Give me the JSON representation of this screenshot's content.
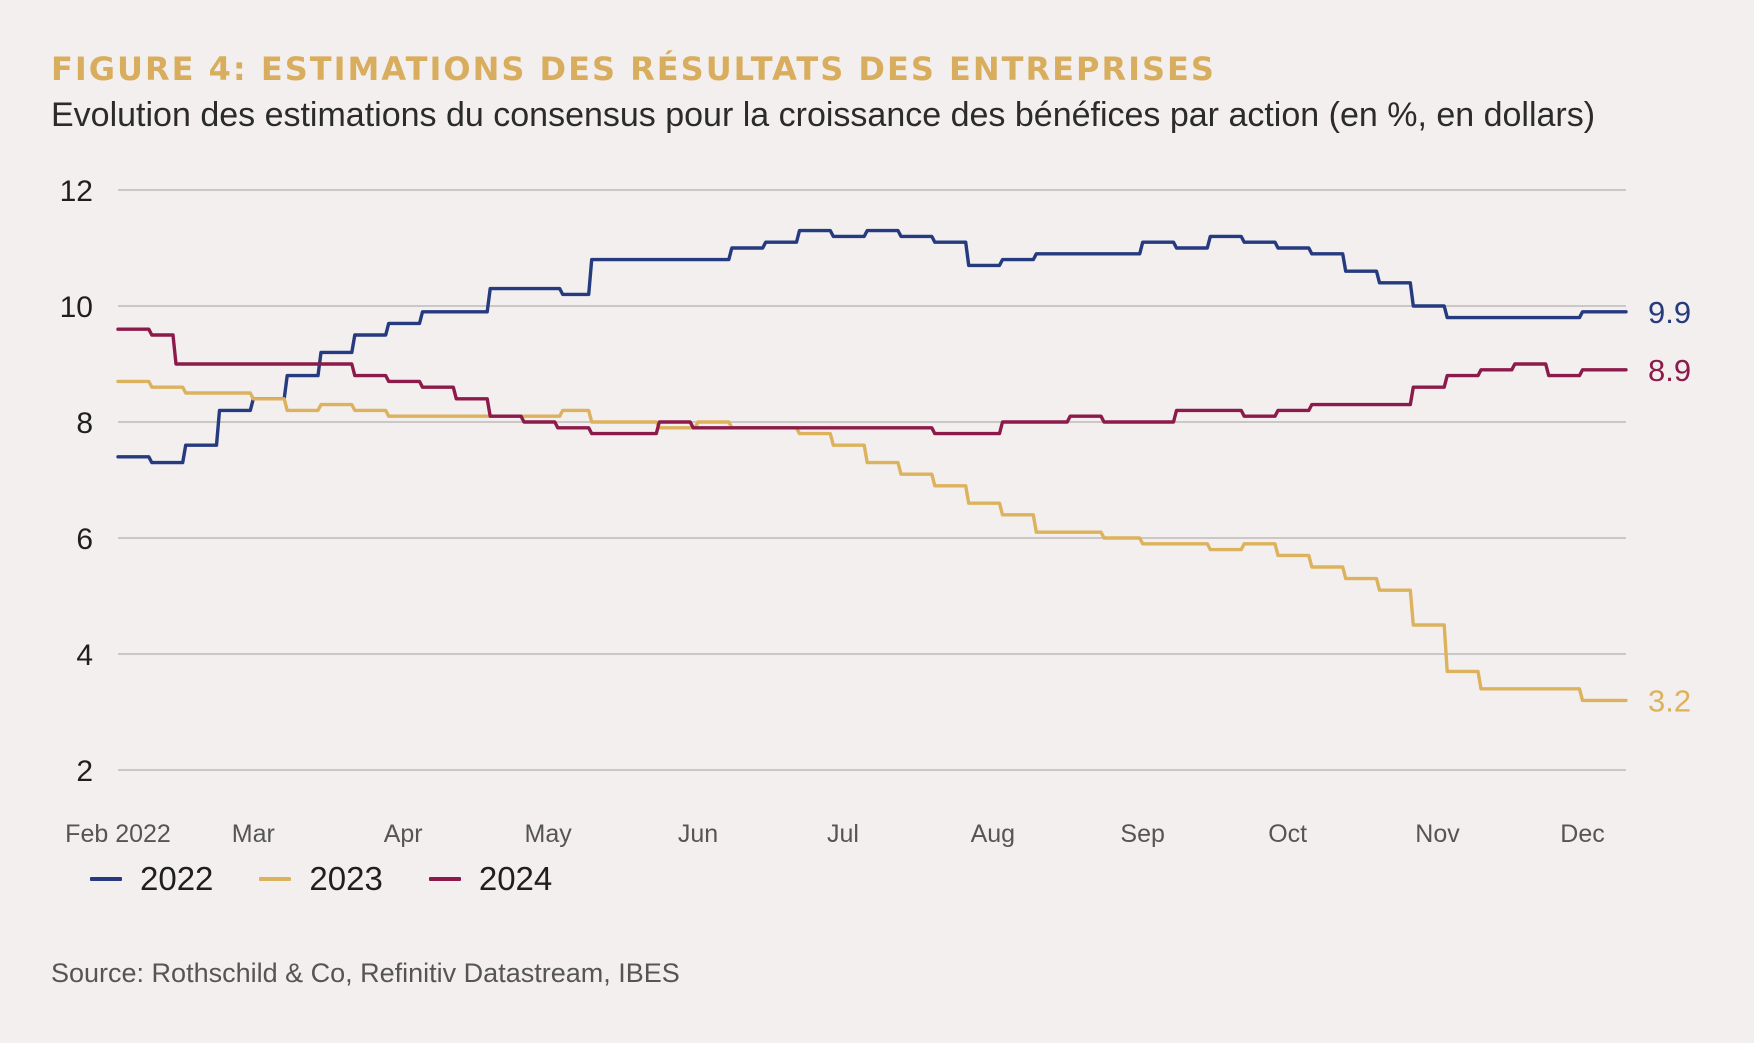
{
  "header": {
    "title": "FIGURE 4: ESTIMATIONS DES RÉSULTATS DES ENTREPRISES",
    "subtitle": "Evolution des estimations du consensus pour la croissance des bénéfices par action (en %, en dollars)"
  },
  "footer": {
    "source": "Source: Rothschild & Co, Refinitiv Datastream, IBES"
  },
  "chart_data": {
    "type": "line",
    "title": "FIGURE 4: ESTIMATIONS DES RÉSULTATS DES ENTREPRISES",
    "subtitle": "Evolution des estimations du consensus pour la croissance des bénéfices par action (en %, en dollars)",
    "xlabel": "",
    "ylabel": "",
    "ylim": [
      2,
      12
    ],
    "yticks": [
      2,
      4,
      6,
      8,
      10,
      12
    ],
    "xlim": [
      "2022-02-01",
      "2022-12-10"
    ],
    "x_ticks": [
      {
        "date": "2022-02-01",
        "label": "Feb 2022"
      },
      {
        "date": "2022-03-01",
        "label": "Mar"
      },
      {
        "date": "2022-04-01",
        "label": "Apr"
      },
      {
        "date": "2022-05-01",
        "label": "May"
      },
      {
        "date": "2022-06-01",
        "label": "Jun"
      },
      {
        "date": "2022-07-01",
        "label": "Jul"
      },
      {
        "date": "2022-08-01",
        "label": "Aug"
      },
      {
        "date": "2022-09-01",
        "label": "Sep"
      },
      {
        "date": "2022-10-01",
        "label": "Oct"
      },
      {
        "date": "2022-11-01",
        "label": "Nov"
      },
      {
        "date": "2022-12-01",
        "label": "Dec"
      }
    ],
    "grid": true,
    "legend_position": "bottom-left",
    "series": [
      {
        "name": "2022",
        "color": "#253a7f",
        "end_label": "9.9",
        "points": [
          [
            "2022-02-01",
            7.4
          ],
          [
            "2022-02-08",
            7.3
          ],
          [
            "2022-02-15",
            7.6
          ],
          [
            "2022-02-22",
            8.2
          ],
          [
            "2022-03-01",
            8.4
          ],
          [
            "2022-03-08",
            8.8
          ],
          [
            "2022-03-15",
            9.2
          ],
          [
            "2022-03-22",
            9.5
          ],
          [
            "2022-03-29",
            9.7
          ],
          [
            "2022-04-05",
            9.9
          ],
          [
            "2022-04-19",
            10.3
          ],
          [
            "2022-05-04",
            10.2
          ],
          [
            "2022-05-10",
            10.8
          ],
          [
            "2022-06-08",
            11.0
          ],
          [
            "2022-06-15",
            11.1
          ],
          [
            "2022-06-22",
            11.3
          ],
          [
            "2022-06-29",
            11.2
          ],
          [
            "2022-07-06",
            11.3
          ],
          [
            "2022-07-13",
            11.2
          ],
          [
            "2022-07-20",
            11.1
          ],
          [
            "2022-07-27",
            10.7
          ],
          [
            "2022-08-03",
            10.8
          ],
          [
            "2022-08-10",
            10.9
          ],
          [
            "2022-09-01",
            11.1
          ],
          [
            "2022-09-08",
            11.0
          ],
          [
            "2022-09-15",
            11.2
          ],
          [
            "2022-09-22",
            11.1
          ],
          [
            "2022-09-29",
            11.0
          ],
          [
            "2022-10-06",
            10.9
          ],
          [
            "2022-10-13",
            10.6
          ],
          [
            "2022-10-20",
            10.4
          ],
          [
            "2022-10-27",
            10.0
          ],
          [
            "2022-11-03",
            9.8
          ],
          [
            "2022-12-01",
            9.9
          ],
          [
            "2022-12-10",
            9.9
          ]
        ]
      },
      {
        "name": "2023",
        "color": "#ddb25d",
        "end_label": "3.2",
        "points": [
          [
            "2022-02-01",
            8.7
          ],
          [
            "2022-02-08",
            8.6
          ],
          [
            "2022-02-15",
            8.5
          ],
          [
            "2022-03-01",
            8.4
          ],
          [
            "2022-03-08",
            8.2
          ],
          [
            "2022-03-15",
            8.3
          ],
          [
            "2022-03-22",
            8.2
          ],
          [
            "2022-03-29",
            8.1
          ],
          [
            "2022-05-04",
            8.2
          ],
          [
            "2022-05-10",
            8.0
          ],
          [
            "2022-05-24",
            7.9
          ],
          [
            "2022-06-01",
            8.0
          ],
          [
            "2022-06-08",
            7.9
          ],
          [
            "2022-06-22",
            7.8
          ],
          [
            "2022-06-29",
            7.6
          ],
          [
            "2022-07-06",
            7.3
          ],
          [
            "2022-07-13",
            7.1
          ],
          [
            "2022-07-20",
            6.9
          ],
          [
            "2022-07-27",
            6.6
          ],
          [
            "2022-08-03",
            6.4
          ],
          [
            "2022-08-10",
            6.1
          ],
          [
            "2022-08-24",
            6.0
          ],
          [
            "2022-09-01",
            5.9
          ],
          [
            "2022-09-15",
            5.8
          ],
          [
            "2022-09-22",
            5.9
          ],
          [
            "2022-09-29",
            5.7
          ],
          [
            "2022-10-06",
            5.5
          ],
          [
            "2022-10-13",
            5.3
          ],
          [
            "2022-10-20",
            5.1
          ],
          [
            "2022-10-27",
            4.5
          ],
          [
            "2022-11-03",
            3.7
          ],
          [
            "2022-11-10",
            3.4
          ],
          [
            "2022-12-01",
            3.2
          ],
          [
            "2022-12-10",
            3.2
          ]
        ]
      },
      {
        "name": "2024",
        "color": "#8c1a4a",
        "end_label": "8.9",
        "points": [
          [
            "2022-02-01",
            9.6
          ],
          [
            "2022-02-08",
            9.5
          ],
          [
            "2022-02-13",
            9.0
          ],
          [
            "2022-03-22",
            8.8
          ],
          [
            "2022-03-29",
            8.7
          ],
          [
            "2022-04-05",
            8.6
          ],
          [
            "2022-04-12",
            8.4
          ],
          [
            "2022-04-19",
            8.1
          ],
          [
            "2022-04-26",
            8.0
          ],
          [
            "2022-05-03",
            7.9
          ],
          [
            "2022-05-10",
            7.8
          ],
          [
            "2022-05-24",
            8.0
          ],
          [
            "2022-05-31",
            7.9
          ],
          [
            "2022-07-20",
            7.8
          ],
          [
            "2022-08-03",
            8.0
          ],
          [
            "2022-08-17",
            8.1
          ],
          [
            "2022-08-24",
            8.0
          ],
          [
            "2022-09-08",
            8.2
          ],
          [
            "2022-09-22",
            8.1
          ],
          [
            "2022-09-29",
            8.2
          ],
          [
            "2022-10-06",
            8.3
          ],
          [
            "2022-10-27",
            8.6
          ],
          [
            "2022-11-03",
            8.8
          ],
          [
            "2022-11-10",
            8.9
          ],
          [
            "2022-11-17",
            9.0
          ],
          [
            "2022-11-24",
            8.8
          ],
          [
            "2022-12-01",
            8.9
          ],
          [
            "2022-12-10",
            8.9
          ]
        ]
      }
    ]
  }
}
